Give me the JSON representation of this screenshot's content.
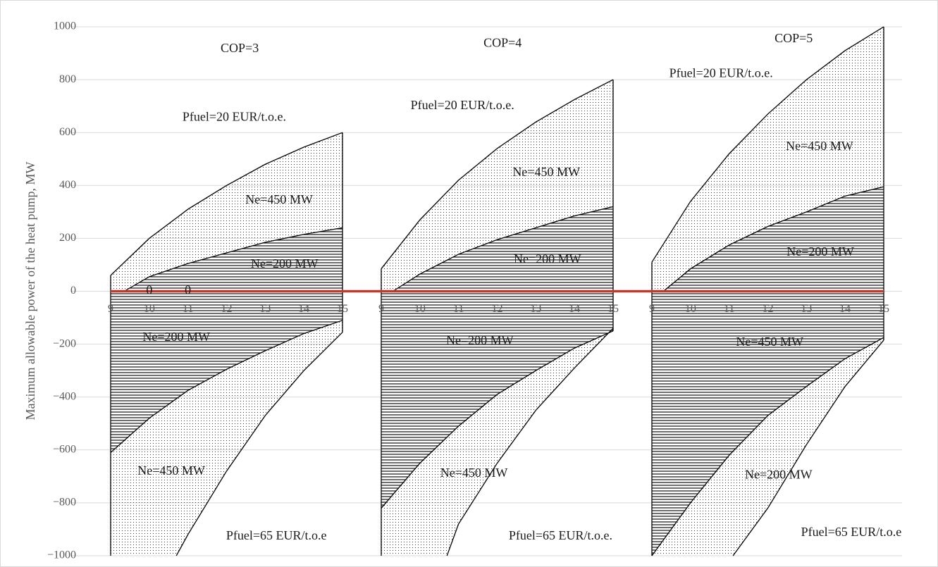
{
  "chart_data": {
    "type": "area",
    "ylabel": "Maximum allowable power of the heat pump, MW",
    "ylim": [
      -1000,
      1000
    ],
    "yticks": [
      {
        "value": -1000,
        "label": "−1000"
      },
      {
        "value": -800,
        "label": "−800"
      },
      {
        "value": -600,
        "label": "−600"
      },
      {
        "value": -400,
        "label": "−400"
      },
      {
        "value": -200,
        "label": "−200"
      },
      0,
      200,
      400,
      600,
      800,
      1000
    ],
    "grid": true,
    "zero_line_color": "#c0392b",
    "panels": [
      {
        "xlim": [
          9,
          15
        ],
        "xticks": [
          9,
          10,
          11,
          12,
          13,
          14,
          15
        ],
        "series": [
          {
            "x": [
              9,
              10,
              11,
              12,
              13,
              14,
              15
            ],
            "values": [
              60,
              200,
              310,
              400,
              480,
              545,
              600
            ],
            "fill": "dots"
          },
          {
            "x": [
              9.35,
              10,
              11,
              12,
              13,
              14,
              15
            ],
            "values": [
              0,
              55,
              105,
              145,
              185,
              215,
              240
            ],
            "fill": "hatch"
          },
          {
            "x": [
              9,
              10,
              11,
              12,
              13,
              14,
              15
            ],
            "values": [
              -610,
              -480,
              -375,
              -295,
              -225,
              -160,
              -110
            ],
            "fill": "hatch"
          },
          {
            "x": [
              10.7,
              11,
              12,
              13,
              14,
              15
            ],
            "values": [
              -1000,
              -920,
              -680,
              -470,
              -300,
              -155
            ],
            "fill": "dots"
          }
        ],
        "annotations": [
          {
            "text": "COP=3",
            "x": 12.34,
            "y": 915
          },
          {
            "text": "Pfuel=20 EUR/t.o.e.",
            "x": 12.2,
            "y": 656
          },
          {
            "text": "Ne=450 MW",
            "x": 13.36,
            "y": 342
          },
          {
            "text": "Ne=200 MW",
            "x": 13.5,
            "y": 100
          },
          {
            "text": "0",
            "x": 10,
            "y": 0
          },
          {
            "text": "0",
            "x": 11,
            "y": 0
          },
          {
            "text": "Ne=200 MW",
            "x": 10.7,
            "y": -177
          },
          {
            "text": "Ne=450 MW",
            "x": 10.57,
            "y": -683
          },
          {
            "text": "Pfuel=65 EUR/t.o.e",
            "x": 13.29,
            "y": -928
          }
        ]
      },
      {
        "xlim": [
          9,
          15
        ],
        "xticks": [
          9,
          10,
          11,
          12,
          13,
          14,
          15
        ],
        "series": [
          {
            "x": [
              9,
              10,
              11,
              12,
              13,
              14,
              15
            ],
            "values": [
              85,
              270,
              420,
              540,
              640,
              725,
              800
            ],
            "fill": "dots"
          },
          {
            "x": [
              9.3,
              10,
              11,
              12,
              13,
              14,
              15
            ],
            "values": [
              0,
              65,
              140,
              195,
              240,
              285,
              320
            ],
            "fill": "hatch"
          },
          {
            "x": [
              9,
              10,
              11,
              12,
              13,
              14,
              15
            ],
            "values": [
              -820,
              -650,
              -510,
              -390,
              -300,
              -215,
              -150
            ],
            "fill": "hatch"
          },
          {
            "x": [
              10.7,
              11,
              12,
              13,
              14,
              15
            ],
            "values": [
              -1000,
              -880,
              -650,
              -450,
              -290,
              -140
            ],
            "fill": "dots"
          }
        ],
        "annotations": [
          {
            "text": "COP=4",
            "x": 12.14,
            "y": 935
          },
          {
            "text": "Pfuel=20 EUR/t.o.e.",
            "x": 11.1,
            "y": 700
          },
          {
            "text": "Ne=450 MW",
            "x": 13.27,
            "y": 447
          },
          {
            "text": "Ne=200 MW",
            "x": 13.3,
            "y": 117
          },
          {
            "text": "Ne=200 MW",
            "x": 11.55,
            "y": -190
          },
          {
            "text": "Ne=450 MW",
            "x": 11.4,
            "y": -691
          },
          {
            "text": "Pfuel=65 EUR/t.o.e.",
            "x": 13.64,
            "y": -928
          }
        ]
      },
      {
        "xlim": [
          9,
          15
        ],
        "xticks": [
          9,
          10,
          11,
          12,
          13,
          14,
          15
        ],
        "series": [
          {
            "x": [
              9,
              10,
              11,
              12,
              13,
              14,
              15
            ],
            "values": [
              110,
              340,
              520,
              670,
              800,
              910,
              1000
            ],
            "fill": "dots"
          },
          {
            "x": [
              9.3,
              10,
              11,
              12,
              13,
              14,
              15
            ],
            "values": [
              0,
              85,
              175,
              245,
              300,
              360,
              395
            ],
            "fill": "hatch"
          },
          {
            "x": [
              9,
              10,
              11,
              12,
              13,
              14,
              15
            ],
            "values": [
              -1000,
              -800,
              -620,
              -470,
              -360,
              -255,
              -175
            ],
            "fill": "hatch"
          },
          {
            "x": [
              11.1,
              12,
              13,
              14,
              15
            ],
            "values": [
              -1000,
              -820,
              -580,
              -360,
              -185
            ],
            "fill": "dots"
          }
        ],
        "annotations": [
          {
            "text": "COP=5",
            "x": 12.67,
            "y": 952
          },
          {
            "text": "Pfuel=20 EUR/t.o.e.",
            "x": 10.79,
            "y": 821
          },
          {
            "text": "Ne=450 MW",
            "x": 13.34,
            "y": 545
          },
          {
            "text": "Ne=200 MW",
            "x": 13.36,
            "y": 146
          },
          {
            "text": "Ne=450 MW",
            "x": 12.05,
            "y": -196
          },
          {
            "text": "Ne=200 MW",
            "x": 12.28,
            "y": -697
          },
          {
            "text": "Pfuel=65 EUR/t.o.e",
            "x": 14.16,
            "y": -915
          }
        ]
      }
    ]
  }
}
